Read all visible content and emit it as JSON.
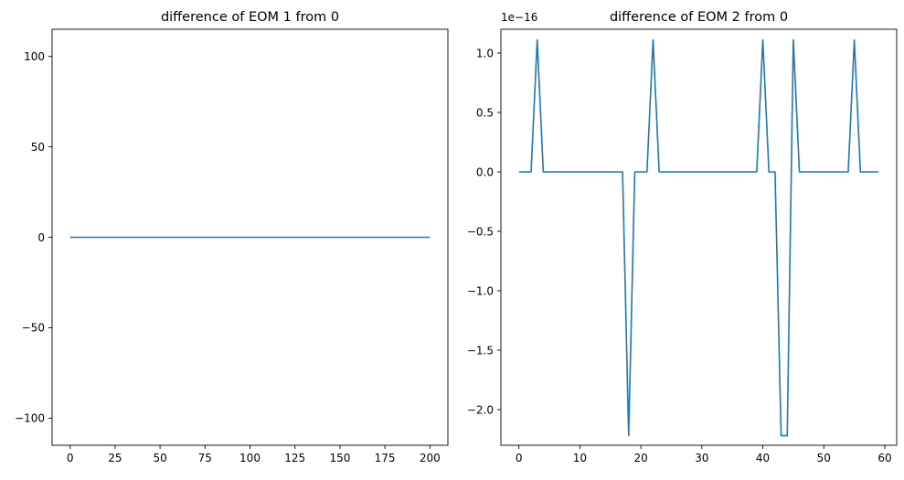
{
  "chart_data": [
    {
      "type": "line",
      "title": "difference of EOM 1 from 0",
      "xlabel": "",
      "ylabel": "",
      "xlim": [
        -10,
        210
      ],
      "ylim": [
        -115,
        115
      ],
      "x_ticks": [
        0,
        25,
        50,
        75,
        100,
        125,
        150,
        175,
        200
      ],
      "x_tick_labels": [
        "0",
        "25",
        "50",
        "75",
        "100",
        "125",
        "150",
        "175",
        "200"
      ],
      "y_ticks": [
        100,
        50,
        0,
        -50,
        -100
      ],
      "y_tick_labels": [
        "100",
        "50",
        "0",
        "−50",
        "−100"
      ],
      "grid": false,
      "series": [
        {
          "color": "#1f77b4",
          "x": [
            0,
            200
          ],
          "y": [
            0,
            0
          ]
        }
      ]
    },
    {
      "type": "line",
      "title": "difference of EOM 2 from 0",
      "xlabel": "",
      "ylabel": "",
      "y_offset_label": "1e−16",
      "xlim": [
        -2.95,
        61.95
      ],
      "ylim": [
        -2.3,
        1.2
      ],
      "x_ticks": [
        0,
        10,
        20,
        30,
        40,
        50,
        60
      ],
      "x_tick_labels": [
        "0",
        "10",
        "20",
        "30",
        "40",
        "50",
        "60"
      ],
      "y_ticks": [
        1.0,
        0.5,
        0.0,
        -0.5,
        -1.0,
        -1.5,
        -2.0
      ],
      "y_tick_labels": [
        "1.0",
        "0.5",
        "0.0",
        "−0.5",
        "−1.0",
        "−1.5",
        "−2.0"
      ],
      "grid": false,
      "series": [
        {
          "color": "#1f77b4",
          "x": [
            0,
            1,
            2,
            3,
            4,
            5,
            6,
            7,
            8,
            9,
            10,
            11,
            12,
            13,
            14,
            15,
            16,
            17,
            18,
            19,
            20,
            21,
            22,
            23,
            24,
            25,
            26,
            27,
            28,
            29,
            30,
            31,
            32,
            33,
            34,
            35,
            36,
            37,
            38,
            39,
            40,
            41,
            42,
            43,
            44,
            45,
            46,
            47,
            48,
            49,
            50,
            51,
            52,
            53,
            54,
            55,
            56,
            57,
            58,
            59
          ],
          "y": [
            0,
            0,
            0,
            1.11,
            0,
            0,
            0,
            0,
            0,
            0,
            0,
            0,
            0,
            0,
            0,
            0,
            0,
            0,
            -2.22,
            0,
            0,
            0,
            1.11,
            0,
            0,
            0,
            0,
            0,
            0,
            0,
            0,
            0,
            0,
            0,
            0,
            0,
            0,
            0,
            0,
            0,
            1.11,
            0,
            0,
            -2.22,
            -2.22,
            1.11,
            0,
            0,
            0,
            0,
            0,
            0,
            0,
            0,
            0,
            1.11,
            0,
            0,
            0,
            0
          ]
        }
      ]
    }
  ]
}
